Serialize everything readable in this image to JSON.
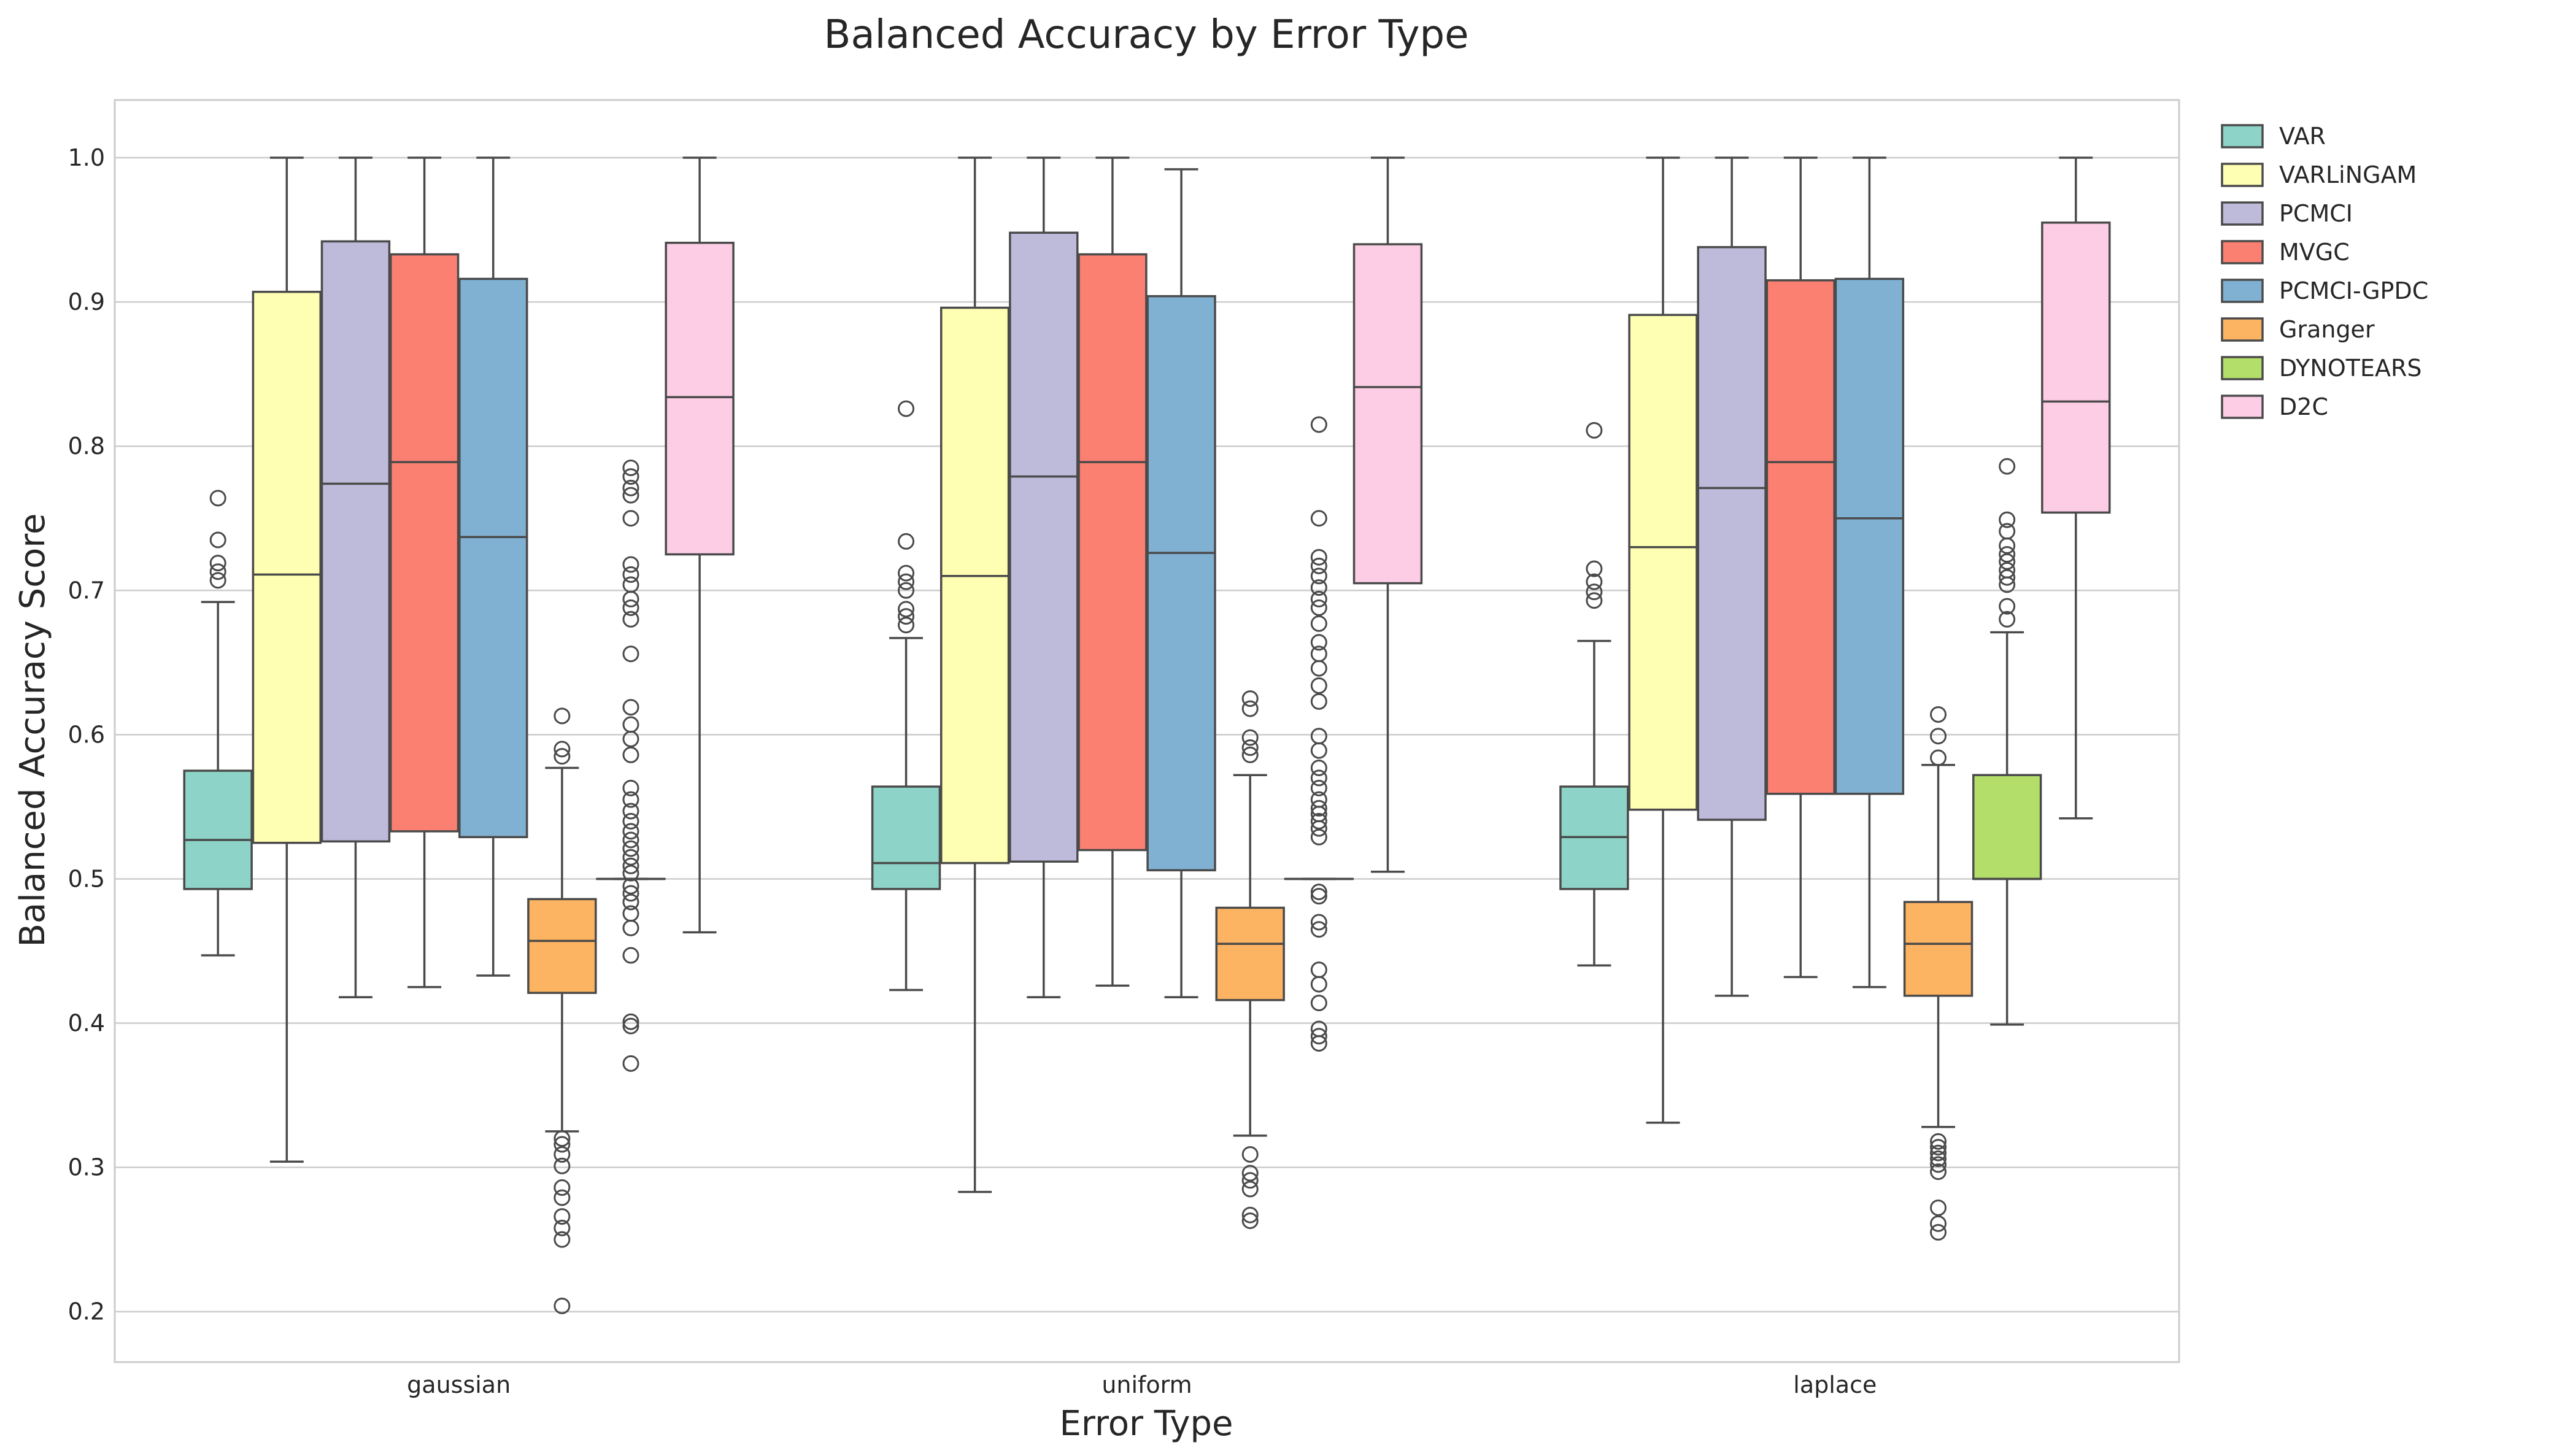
{
  "chart_data": {
    "type": "box",
    "title": "Balanced Accuracy by Error Type",
    "xlabel": "Error Type",
    "ylabel": "Balanced Accuracy Score",
    "categories": [
      "gaussian",
      "uniform",
      "laplace"
    ],
    "ylim": [
      0.165,
      1.04
    ],
    "yticks": [
      "0.2",
      "0.3",
      "0.4",
      "0.5",
      "0.6",
      "0.7",
      "0.8",
      "0.9",
      "1.0"
    ],
    "grid": true,
    "legend_position": "outside-right",
    "series": [
      {
        "name": "VAR",
        "color": "#8dd3c7",
        "boxes": [
          {
            "q1": 0.493,
            "median": 0.527,
            "q3": 0.575,
            "whislo": 0.447,
            "whishi": 0.692,
            "fliers": [
              0.707,
              0.713,
              0.719,
              0.735,
              0.764
            ]
          },
          {
            "q1": 0.493,
            "median": 0.511,
            "q3": 0.564,
            "whislo": 0.423,
            "whishi": 0.667,
            "fliers": [
              0.676,
              0.682,
              0.687,
              0.7,
              0.706,
              0.712,
              0.734,
              0.826
            ]
          },
          {
            "q1": 0.493,
            "median": 0.529,
            "q3": 0.564,
            "whislo": 0.44,
            "whishi": 0.665,
            "fliers": [
              0.693,
              0.699,
              0.706,
              0.715,
              0.811
            ]
          }
        ]
      },
      {
        "name": "VARLiNGAM",
        "color": "#ffffb3",
        "boxes": [
          {
            "q1": 0.525,
            "median": 0.711,
            "q3": 0.907,
            "whislo": 0.304,
            "whishi": 1.0,
            "fliers": []
          },
          {
            "q1": 0.511,
            "median": 0.71,
            "q3": 0.896,
            "whislo": 0.283,
            "whishi": 1.0,
            "fliers": []
          },
          {
            "q1": 0.548,
            "median": 0.73,
            "q3": 0.891,
            "whislo": 0.331,
            "whishi": 1.0,
            "fliers": []
          }
        ]
      },
      {
        "name": "PCMCI",
        "color": "#bebada",
        "boxes": [
          {
            "q1": 0.526,
            "median": 0.774,
            "q3": 0.942,
            "whislo": 0.418,
            "whishi": 1.0,
            "fliers": []
          },
          {
            "q1": 0.512,
            "median": 0.779,
            "q3": 0.948,
            "whislo": 0.418,
            "whishi": 1.0,
            "fliers": []
          },
          {
            "q1": 0.541,
            "median": 0.771,
            "q3": 0.938,
            "whislo": 0.419,
            "whishi": 1.0,
            "fliers": []
          }
        ]
      },
      {
        "name": "MVGC",
        "color": "#fb8072",
        "boxes": [
          {
            "q1": 0.533,
            "median": 0.789,
            "q3": 0.933,
            "whislo": 0.425,
            "whishi": 1.0,
            "fliers": []
          },
          {
            "q1": 0.52,
            "median": 0.789,
            "q3": 0.933,
            "whislo": 0.426,
            "whishi": 1.0,
            "fliers": []
          },
          {
            "q1": 0.559,
            "median": 0.789,
            "q3": 0.915,
            "whislo": 0.432,
            "whishi": 1.0,
            "fliers": []
          }
        ]
      },
      {
        "name": "PCMCI-GPDC",
        "color": "#80b1d3",
        "boxes": [
          {
            "q1": 0.529,
            "median": 0.737,
            "q3": 0.916,
            "whislo": 0.433,
            "whishi": 1.0,
            "fliers": []
          },
          {
            "q1": 0.506,
            "median": 0.726,
            "q3": 0.904,
            "whislo": 0.418,
            "whishi": 0.992,
            "fliers": []
          },
          {
            "q1": 0.559,
            "median": 0.75,
            "q3": 0.916,
            "whislo": 0.425,
            "whishi": 1.0,
            "fliers": []
          }
        ]
      },
      {
        "name": "Granger",
        "color": "#fdb462",
        "boxes": [
          {
            "q1": 0.421,
            "median": 0.457,
            "q3": 0.486,
            "whislo": 0.325,
            "whishi": 0.577,
            "fliers": [
              0.204,
              0.25,
              0.258,
              0.266,
              0.279,
              0.286,
              0.301,
              0.309,
              0.316,
              0.32,
              0.585,
              0.59,
              0.613
            ]
          },
          {
            "q1": 0.416,
            "median": 0.455,
            "q3": 0.48,
            "whislo": 0.322,
            "whishi": 0.572,
            "fliers": [
              0.263,
              0.267,
              0.285,
              0.291,
              0.296,
              0.309,
              0.586,
              0.591,
              0.598,
              0.618,
              0.625
            ]
          },
          {
            "q1": 0.419,
            "median": 0.455,
            "q3": 0.484,
            "whislo": 0.328,
            "whishi": 0.579,
            "fliers": [
              0.255,
              0.261,
              0.272,
              0.297,
              0.302,
              0.306,
              0.31,
              0.314,
              0.318,
              0.584,
              0.599,
              0.614
            ]
          }
        ]
      },
      {
        "name": "DYNOTEARS",
        "color": "#b3de69",
        "boxes": [
          {
            "q1": 0.5,
            "median": 0.5,
            "q3": 0.5,
            "whislo": 0.5,
            "whishi": 0.5,
            "fliers": [
              0.372,
              0.398,
              0.401,
              0.447,
              0.466,
              0.476,
              0.484,
              0.49,
              0.495,
              0.504,
              0.509,
              0.515,
              0.521,
              0.527,
              0.533,
              0.54,
              0.547,
              0.555,
              0.563,
              0.586,
              0.597,
              0.607,
              0.619,
              0.656,
              0.68,
              0.688,
              0.694,
              0.704,
              0.711,
              0.718,
              0.75,
              0.766,
              0.771,
              0.779,
              0.785
            ]
          },
          {
            "q1": 0.5,
            "median": 0.5,
            "q3": 0.5,
            "whislo": 0.5,
            "whishi": 0.5,
            "fliers": [
              0.386,
              0.391,
              0.396,
              0.414,
              0.427,
              0.437,
              0.465,
              0.47,
              0.488,
              0.491,
              0.529,
              0.535,
              0.54,
              0.545,
              0.549,
              0.555,
              0.563,
              0.57,
              0.577,
              0.589,
              0.599,
              0.623,
              0.634,
              0.646,
              0.656,
              0.664,
              0.677,
              0.688,
              0.694,
              0.702,
              0.71,
              0.717,
              0.723,
              0.75,
              0.815
            ]
          },
          {
            "q1": 0.5,
            "median": 0.5,
            "q3": 0.572,
            "whislo": 0.399,
            "whishi": 0.671,
            "fliers": [
              0.68,
              0.689,
              0.704,
              0.709,
              0.714,
              0.72,
              0.725,
              0.731,
              0.741,
              0.749,
              0.786
            ]
          }
        ]
      },
      {
        "name": "D2C",
        "color": "#fccde5",
        "boxes": [
          {
            "q1": 0.725,
            "median": 0.834,
            "q3": 0.941,
            "whislo": 0.463,
            "whishi": 1.0,
            "fliers": []
          },
          {
            "q1": 0.705,
            "median": 0.841,
            "q3": 0.94,
            "whislo": 0.505,
            "whishi": 1.0,
            "fliers": []
          },
          {
            "q1": 0.754,
            "median": 0.831,
            "q3": 0.955,
            "whislo": 0.542,
            "whishi": 1.0,
            "fliers": []
          }
        ]
      }
    ]
  }
}
